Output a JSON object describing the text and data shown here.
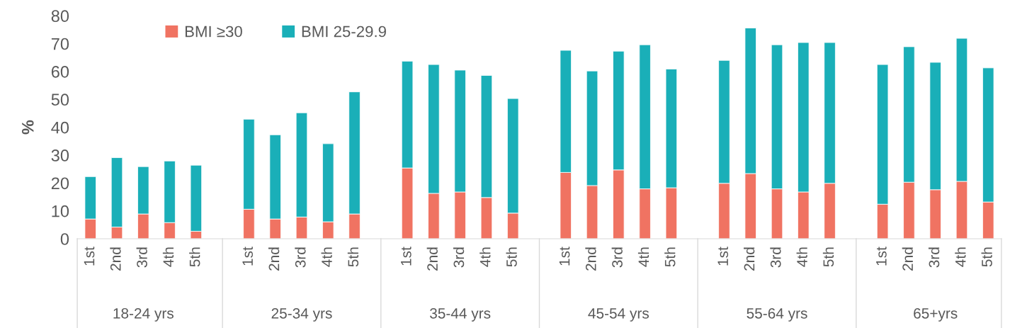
{
  "chart_data": {
    "type": "bar",
    "stacked": true,
    "ylabel": "%",
    "categories": [
      "1st",
      "2nd",
      "3rd",
      "4th",
      "5th",
      null,
      "1st",
      "2nd",
      "3rd",
      "4th",
      "5th",
      null,
      "1st",
      "2nd",
      "3rd",
      "4th",
      "5th",
      null,
      "1st",
      "2nd",
      "3rd",
      "4th",
      "5th",
      null,
      "1st",
      "2nd",
      "3rd",
      "4th",
      "5th",
      null,
      "1st",
      "2nd",
      "3rd",
      "4th",
      "5th"
    ],
    "series": [
      {
        "name": "BMI ≥30",
        "color": "#f07362",
        "values": [
          7.1,
          4.2,
          8.9,
          5.8,
          2.7,
          null,
          10.6,
          7.1,
          7.8,
          6.1,
          8.9,
          null,
          25.4,
          16.3,
          16.8,
          14.8,
          9.2,
          null,
          23.8,
          19.1,
          24.7,
          17.9,
          18.3,
          null,
          19.9,
          23.4,
          17.9,
          16.8,
          19.9,
          null,
          12.4,
          20.3,
          17.6,
          20.6,
          13.2
        ]
      },
      {
        "name": "BMI 25-29.9",
        "color": "#1aafb8",
        "values": [
          15.2,
          24.9,
          17.0,
          22.1,
          23.7,
          null,
          32.3,
          30.2,
          37.4,
          28.0,
          43.8,
          null,
          38.3,
          46.2,
          43.7,
          43.8,
          41.1,
          null,
          43.8,
          41.1,
          42.6,
          51.7,
          42.6,
          null,
          44.1,
          52.2,
          51.7,
          53.6,
          50.5,
          null,
          50.1,
          48.6,
          45.7,
          51.3,
          48.1
        ]
      }
    ],
    "annotations": [
      "18-24 yrs",
      "25-34 yrs",
      "35-44 yrs",
      "45-54 yrs",
      "55-64 yrs",
      "65+yrs"
    ],
    "ylim": [
      0,
      80
    ],
    "yticks": [
      0,
      10,
      20,
      30,
      40,
      50,
      60,
      70,
      80
    ],
    "grid": false,
    "legend": "top left"
  }
}
